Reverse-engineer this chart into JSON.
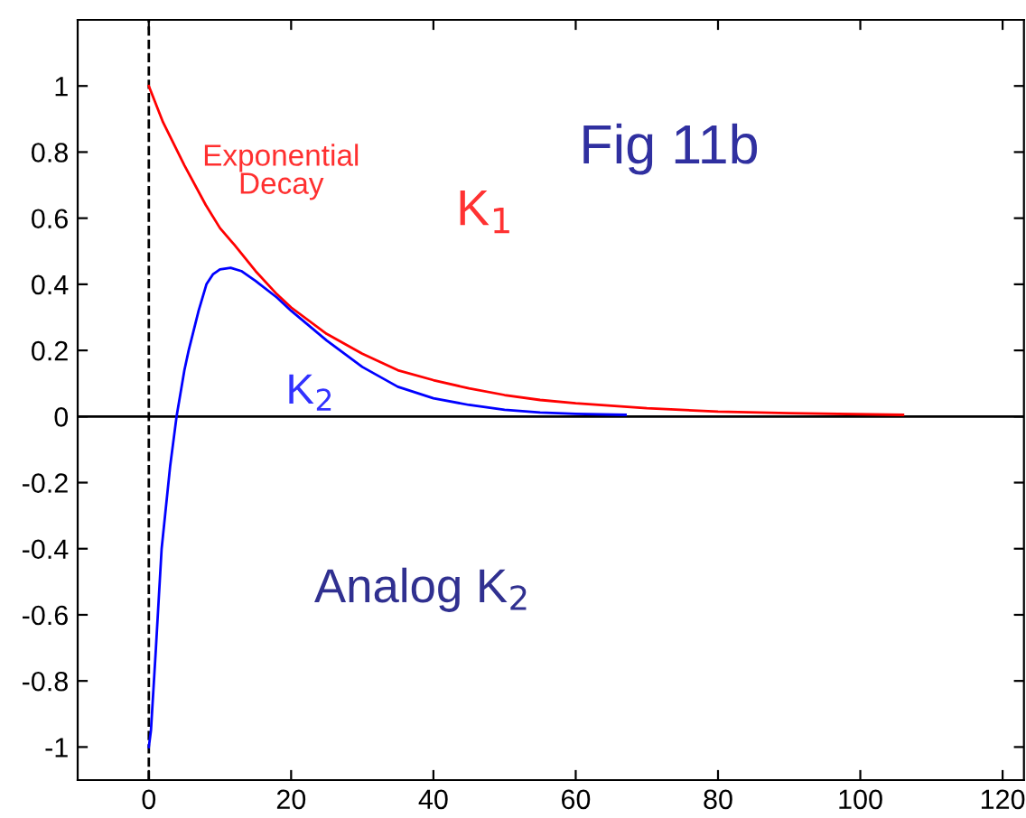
{
  "chart_data": {
    "type": "line",
    "annotations": [
      "Fig 11b",
      "Exponential\nDecay",
      "Analog K$_{2}$"
    ],
    "xlim": [
      -10,
      123
    ],
    "ylim": [
      -1.1,
      1.2
    ],
    "xticks": [
      0,
      20,
      40,
      60,
      80,
      100,
      120
    ],
    "yticks": [
      -1,
      -0.8,
      -0.6,
      -0.4,
      -0.2,
      0,
      0.2,
      0.4,
      0.6,
      0.8,
      1
    ],
    "grid": false,
    "legend": false,
    "marker": "none",
    "line_style": "solid",
    "ref_lines": [
      {
        "axis": "x",
        "value": 0,
        "line_style": "dashed",
        "color": "#000000"
      },
      {
        "axis": "y",
        "value": 0,
        "line_style": "solid",
        "color": "#000000"
      }
    ],
    "series": [
      {
        "name": "K$_{1}$",
        "color": "#ff0000",
        "x": [
          0,
          2,
          5,
          8,
          10,
          12,
          15,
          18,
          20,
          25,
          30,
          35,
          40,
          45,
          50,
          55,
          60,
          70,
          80,
          90,
          106
        ],
        "values": [
          1,
          0.89,
          0.76,
          0.64,
          0.57,
          0.52,
          0.44,
          0.37,
          0.33,
          0.25,
          0.19,
          0.14,
          0.11,
          0.085,
          0.065,
          0.05,
          0.04,
          0.025,
          0.015,
          0.01,
          0.005
        ]
      },
      {
        "name": "K$_{2}$",
        "color": "#0000ff",
        "x": [
          0,
          0.3,
          1,
          1.8,
          3,
          3.9,
          5,
          5.6,
          7,
          8.1,
          9,
          10,
          11.5,
          13,
          15,
          18,
          20,
          25,
          30,
          35,
          40,
          45,
          50,
          55,
          60,
          67
        ],
        "values": [
          -1,
          -0.95,
          -0.7,
          -0.4,
          -0.15,
          0,
          0.14,
          0.2,
          0.32,
          0.4,
          0.43,
          0.445,
          0.45,
          0.44,
          0.41,
          0.36,
          0.32,
          0.23,
          0.15,
          0.09,
          0.055,
          0.035,
          0.02,
          0.012,
          0.008,
          0.005
        ]
      }
    ]
  }
}
